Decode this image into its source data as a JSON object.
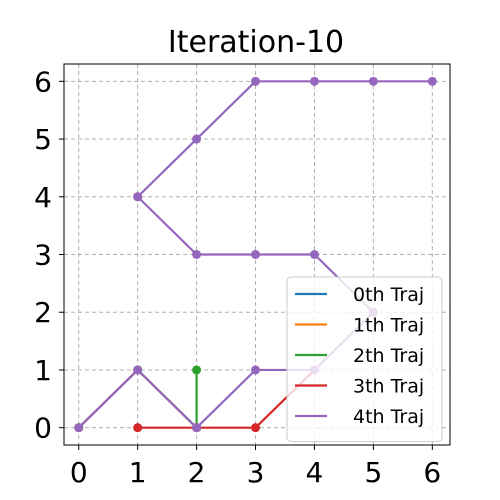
{
  "chart_data": {
    "type": "line",
    "title": "Iteration-10",
    "xlabel": "",
    "ylabel": "",
    "xlim": [
      -0.25,
      6.3
    ],
    "ylim": [
      -0.3,
      6.3
    ],
    "xticks": [
      0,
      1,
      2,
      3,
      4,
      5,
      6
    ],
    "yticks": [
      0,
      1,
      2,
      3,
      4,
      5,
      6
    ],
    "grid": true,
    "legend_position": "lower-right",
    "series": [
      {
        "name": "0th Traj",
        "color": "#1f77b4",
        "segments": [
          [
            [
              0,
              0
            ],
            [
              1,
              1
            ],
            [
              2,
              0
            ]
          ]
        ]
      },
      {
        "name": "1th Traj",
        "color": "#ff7f0e",
        "segments": [
          [
            [
              0,
              0
            ],
            [
              1,
              1
            ],
            [
              2,
              0
            ]
          ]
        ]
      },
      {
        "name": "2th Traj",
        "color": "#2ca02c",
        "segments": [
          [
            [
              2,
              1
            ],
            [
              2,
              0
            ]
          ]
        ]
      },
      {
        "name": "3th Traj",
        "color": "#d62728",
        "segments": [
          [
            [
              1,
              0
            ],
            [
              2,
              0
            ],
            [
              3,
              0
            ],
            [
              4,
              1
            ],
            [
              5,
              2
            ]
          ]
        ]
      },
      {
        "name": "4th Traj",
        "color": "#9467bd",
        "segments": [
          [
            [
              0,
              0
            ],
            [
              1,
              1
            ],
            [
              2,
              0
            ],
            [
              3,
              1
            ],
            [
              4,
              1
            ],
            [
              5,
              2
            ]
          ],
          [
            [
              1,
              4
            ],
            [
              2,
              5
            ],
            [
              3,
              6
            ],
            [
              4,
              6
            ],
            [
              5,
              6
            ],
            [
              6,
              6
            ]
          ],
          [
            [
              1,
              4
            ],
            [
              2,
              3
            ],
            [
              3,
              3
            ],
            [
              4,
              3
            ],
            [
              5,
              2
            ]
          ]
        ]
      }
    ]
  }
}
